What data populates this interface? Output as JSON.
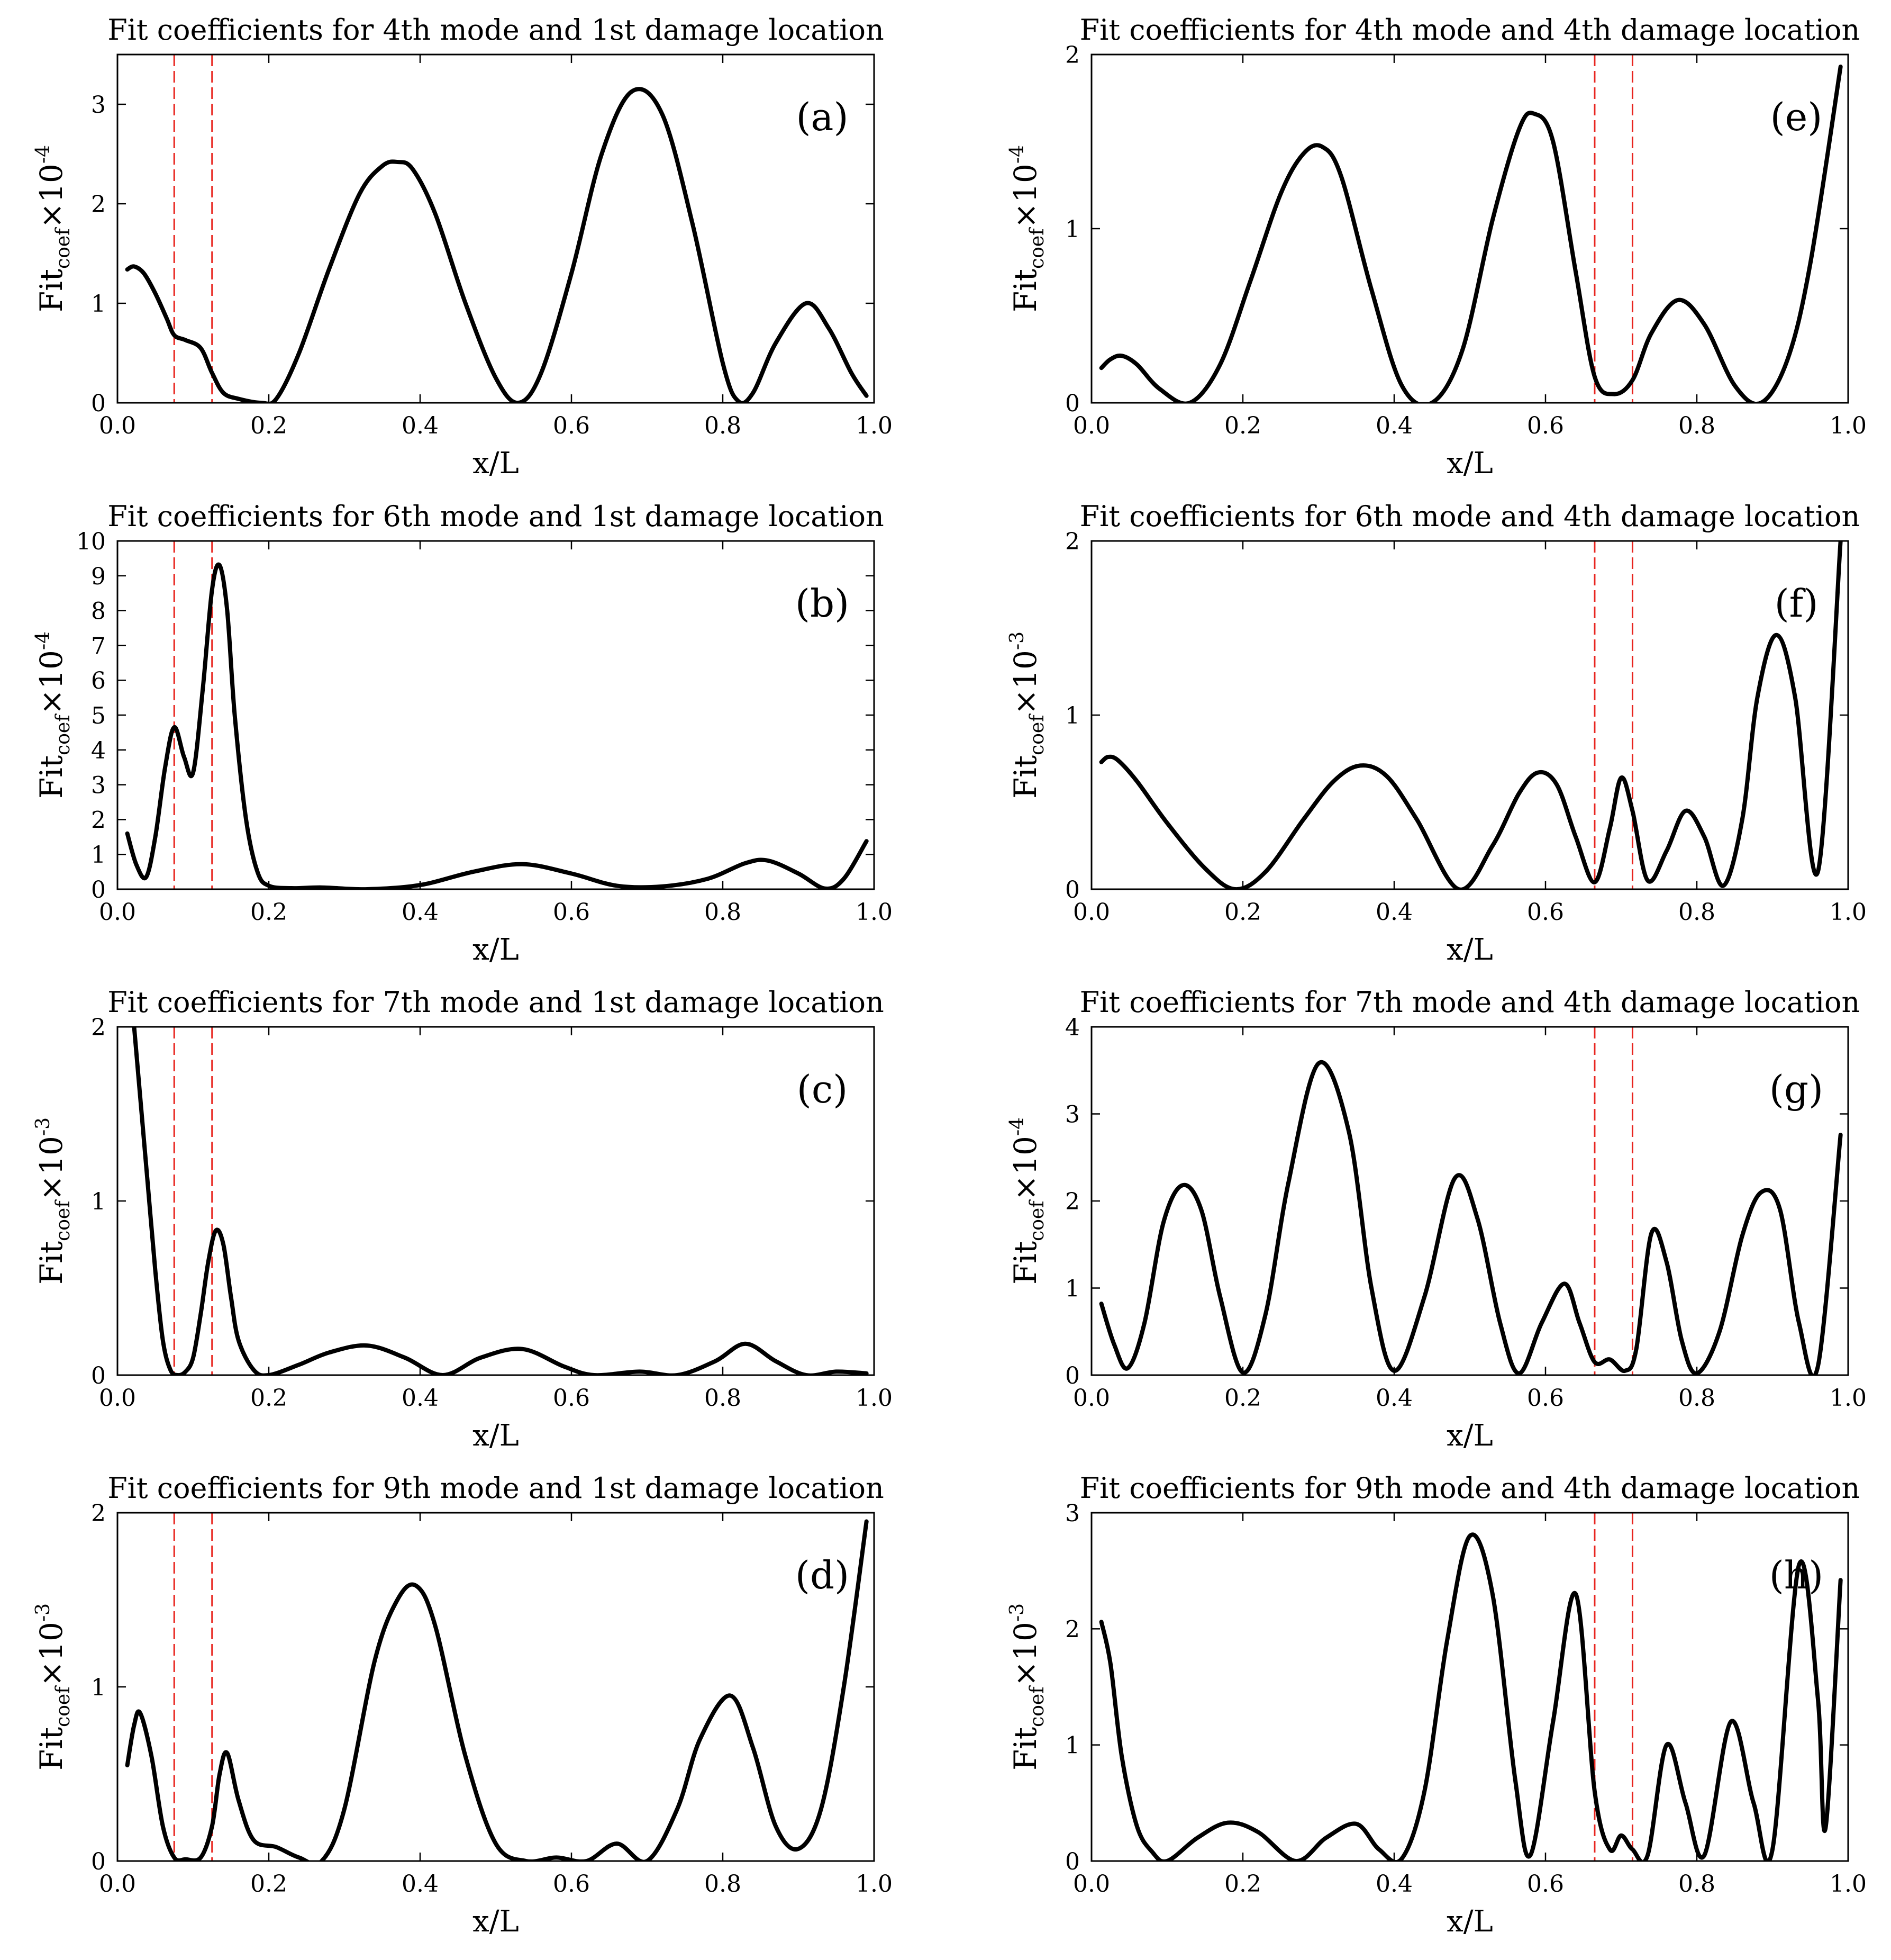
{
  "chart_data": [
    {
      "type": "line",
      "panel_label": "(a)",
      "title": "Fit coefficients for 4th mode and 1st damage location",
      "xlabel": "x/L",
      "ylabel": {
        "base": "Fit",
        "sub": "coef",
        "times": "×10",
        "exp": "-4"
      },
      "xlim": [
        0,
        1
      ],
      "ylim": [
        0,
        3.5
      ],
      "xticks": [
        "0.0",
        "0.2",
        "0.4",
        "0.6",
        "0.8",
        "1.0"
      ],
      "yticks": [
        0,
        1,
        2,
        3
      ],
      "damage_lines_x": [
        0.075,
        0.125
      ],
      "x": [
        0.013,
        0.022,
        0.035,
        0.05,
        0.065,
        0.075,
        0.09,
        0.11,
        0.125,
        0.14,
        0.16,
        0.19,
        0.21,
        0.24,
        0.28,
        0.32,
        0.35,
        0.37,
        0.39,
        0.42,
        0.46,
        0.5,
        0.53,
        0.56,
        0.6,
        0.64,
        0.68,
        0.72,
        0.76,
        0.8,
        0.82,
        0.84,
        0.87,
        0.91,
        0.94,
        0.97,
        0.99
      ],
      "y": [
        1.34,
        1.37,
        1.3,
        1.1,
        0.85,
        0.68,
        0.63,
        0.55,
        0.3,
        0.1,
        0.04,
        0.0,
        0.04,
        0.5,
        1.35,
        2.1,
        2.38,
        2.42,
        2.35,
        1.9,
        1.0,
        0.25,
        0.0,
        0.3,
        1.3,
        2.5,
        3.13,
        2.9,
        1.8,
        0.4,
        0.02,
        0.1,
        0.6,
        1.0,
        0.75,
        0.3,
        0.07
      ]
    },
    {
      "type": "line",
      "panel_label": "(b)",
      "title": "Fit coefficients for 6th mode and 1st damage location",
      "xlabel": "x/L",
      "ylabel": {
        "base": "Fit",
        "sub": "coef",
        "times": "×10",
        "exp": "-4"
      },
      "xlim": [
        0,
        1
      ],
      "ylim": [
        0,
        10
      ],
      "xticks": [
        "0.0",
        "0.2",
        "0.4",
        "0.6",
        "0.8",
        "1.0"
      ],
      "yticks": [
        0,
        1,
        2,
        3,
        4,
        5,
        6,
        7,
        8,
        9,
        10
      ],
      "damage_lines_x": [
        0.075,
        0.125
      ],
      "x": [
        0.013,
        0.025,
        0.038,
        0.05,
        0.063,
        0.075,
        0.088,
        0.1,
        0.113,
        0.125,
        0.135,
        0.145,
        0.155,
        0.17,
        0.185,
        0.2,
        0.23,
        0.27,
        0.33,
        0.4,
        0.47,
        0.535,
        0.6,
        0.66,
        0.72,
        0.78,
        0.83,
        0.86,
        0.9,
        0.935,
        0.96,
        0.99
      ],
      "y": [
        1.6,
        0.7,
        0.35,
        1.5,
        3.5,
        4.65,
        3.8,
        3.35,
        5.8,
        8.6,
        9.3,
        8.0,
        5.0,
        2.0,
        0.5,
        0.1,
        0.03,
        0.05,
        0.0,
        0.12,
        0.5,
        0.72,
        0.45,
        0.1,
        0.08,
        0.3,
        0.75,
        0.82,
        0.45,
        0.02,
        0.3,
        1.38
      ]
    },
    {
      "type": "line",
      "panel_label": "(c)",
      "title": "Fit coefficients for 7th mode and 1st damage location",
      "xlabel": "x/L",
      "ylabel": {
        "base": "Fit",
        "sub": "coef",
        "times": "×10",
        "exp": "-3"
      },
      "xlim": [
        0,
        1
      ],
      "ylim": [
        0,
        2
      ],
      "xticks": [
        "0.0",
        "0.2",
        "0.4",
        "0.6",
        "0.8",
        "1.0"
      ],
      "yticks": [
        0,
        1,
        2
      ],
      "damage_lines_x": [
        0.075,
        0.125
      ],
      "x": [
        0.022,
        0.03,
        0.04,
        0.05,
        0.06,
        0.07,
        0.08,
        0.09,
        0.1,
        0.11,
        0.12,
        0.13,
        0.14,
        0.15,
        0.16,
        0.18,
        0.2,
        0.24,
        0.28,
        0.33,
        0.38,
        0.43,
        0.48,
        0.535,
        0.59,
        0.63,
        0.69,
        0.74,
        0.79,
        0.83,
        0.87,
        0.91,
        0.95,
        0.99
      ],
      "y": [
        2.0,
        1.6,
        1.1,
        0.6,
        0.2,
        0.03,
        0.0,
        0.02,
        0.1,
        0.35,
        0.65,
        0.83,
        0.75,
        0.45,
        0.2,
        0.03,
        0.0,
        0.06,
        0.13,
        0.17,
        0.1,
        0.0,
        0.1,
        0.15,
        0.05,
        0.0,
        0.02,
        0.0,
        0.08,
        0.18,
        0.08,
        0.0,
        0.02,
        0.01
      ]
    },
    {
      "type": "line",
      "panel_label": "(d)",
      "title": "Fit coefficients for 9th mode and 1st damage location",
      "xlabel": "x/L",
      "ylabel": {
        "base": "Fit",
        "sub": "coef",
        "times": "×10",
        "exp": "-3"
      },
      "xlim": [
        0,
        1
      ],
      "ylim": [
        0,
        2
      ],
      "xticks": [
        "0.0",
        "0.2",
        "0.4",
        "0.6",
        "0.8",
        "1.0"
      ],
      "yticks": [
        0,
        1,
        2
      ],
      "damage_lines_x": [
        0.075,
        0.125
      ],
      "x": [
        0.013,
        0.022,
        0.03,
        0.045,
        0.06,
        0.075,
        0.09,
        0.11,
        0.125,
        0.135,
        0.145,
        0.16,
        0.18,
        0.21,
        0.24,
        0.27,
        0.3,
        0.34,
        0.37,
        0.395,
        0.42,
        0.46,
        0.5,
        0.54,
        0.58,
        0.62,
        0.66,
        0.7,
        0.74,
        0.77,
        0.81,
        0.84,
        0.87,
        0.9,
        0.93,
        0.96,
        0.99
      ],
      "y": [
        0.55,
        0.78,
        0.85,
        0.6,
        0.2,
        0.02,
        0.01,
        0.02,
        0.2,
        0.5,
        0.62,
        0.35,
        0.12,
        0.08,
        0.02,
        0.0,
        0.3,
        1.15,
        1.5,
        1.58,
        1.35,
        0.6,
        0.1,
        0.0,
        0.02,
        0.0,
        0.1,
        0.0,
        0.3,
        0.7,
        0.95,
        0.65,
        0.2,
        0.07,
        0.3,
        1.0,
        1.95
      ]
    },
    {
      "type": "line",
      "panel_label": "(e)",
      "title": "Fit coefficients for 4th mode and 4th damage location",
      "xlabel": "x/L",
      "ylabel": {
        "base": "Fit",
        "sub": "coef",
        "times": "×10",
        "exp": "-4"
      },
      "xlim": [
        0,
        1
      ],
      "ylim": [
        0,
        2
      ],
      "xticks": [
        "0.0",
        "0.2",
        "0.4",
        "0.6",
        "0.8",
        "1.0"
      ],
      "yticks": [
        0,
        1,
        2
      ],
      "damage_lines_x": [
        0.665,
        0.715
      ],
      "x": [
        0.013,
        0.025,
        0.04,
        0.06,
        0.09,
        0.13,
        0.17,
        0.21,
        0.25,
        0.28,
        0.305,
        0.33,
        0.37,
        0.41,
        0.45,
        0.49,
        0.53,
        0.565,
        0.585,
        0.61,
        0.64,
        0.665,
        0.69,
        0.715,
        0.74,
        0.775,
        0.81,
        0.85,
        0.885,
        0.92,
        0.95,
        0.99
      ],
      "y": [
        0.2,
        0.25,
        0.27,
        0.22,
        0.08,
        0.0,
        0.22,
        0.7,
        1.2,
        1.43,
        1.47,
        1.3,
        0.65,
        0.1,
        0.0,
        0.3,
        1.05,
        1.57,
        1.66,
        1.5,
        0.75,
        0.15,
        0.05,
        0.13,
        0.4,
        0.59,
        0.45,
        0.1,
        0.0,
        0.25,
        0.8,
        1.93
      ]
    },
    {
      "type": "line",
      "panel_label": "(f)",
      "title": "Fit coefficients for 6th mode and 4th damage location",
      "xlabel": "x/L",
      "ylabel": {
        "base": "Fit",
        "sub": "coef",
        "times": "×10",
        "exp": "-3"
      },
      "xlim": [
        0,
        1
      ],
      "ylim": [
        0,
        2
      ],
      "xticks": [
        "0.0",
        "0.2",
        "0.4",
        "0.6",
        "0.8",
        "1.0"
      ],
      "yticks": [
        0,
        1,
        2
      ],
      "damage_lines_x": [
        0.665,
        0.715
      ],
      "x": [
        0.013,
        0.022,
        0.035,
        0.06,
        0.1,
        0.15,
        0.19,
        0.23,
        0.28,
        0.32,
        0.355,
        0.39,
        0.43,
        0.485,
        0.53,
        0.565,
        0.59,
        0.615,
        0.64,
        0.665,
        0.685,
        0.7,
        0.715,
        0.735,
        0.76,
        0.785,
        0.81,
        0.835,
        0.86,
        0.88,
        0.905,
        0.93,
        0.96,
        0.99
      ],
      "y": [
        0.73,
        0.76,
        0.74,
        0.62,
        0.38,
        0.12,
        0.0,
        0.1,
        0.4,
        0.62,
        0.71,
        0.65,
        0.4,
        0.0,
        0.25,
        0.55,
        0.67,
        0.6,
        0.3,
        0.04,
        0.35,
        0.64,
        0.45,
        0.05,
        0.22,
        0.45,
        0.3,
        0.02,
        0.4,
        1.1,
        1.46,
        1.1,
        0.1,
        2.0
      ]
    },
    {
      "type": "line",
      "panel_label": "(g)",
      "title": "Fit coefficients for 7th mode and 4th damage location",
      "xlabel": "x/L",
      "ylabel": {
        "base": "Fit",
        "sub": "coef",
        "times": "×10",
        "exp": "-4"
      },
      "xlim": [
        0,
        1
      ],
      "ylim": [
        0,
        4
      ],
      "xticks": [
        "0.0",
        "0.2",
        "0.4",
        "0.6",
        "0.8",
        "1.0"
      ],
      "yticks": [
        0,
        1,
        2,
        3,
        4
      ],
      "damage_lines_x": [
        0.665,
        0.715
      ],
      "x": [
        0.013,
        0.03,
        0.048,
        0.07,
        0.095,
        0.12,
        0.145,
        0.17,
        0.2,
        0.23,
        0.26,
        0.3,
        0.34,
        0.37,
        0.4,
        0.44,
        0.48,
        0.51,
        0.54,
        0.565,
        0.595,
        0.625,
        0.645,
        0.665,
        0.685,
        0.705,
        0.72,
        0.74,
        0.76,
        0.78,
        0.8,
        0.83,
        0.86,
        0.885,
        0.91,
        0.935,
        0.96,
        0.99
      ],
      "y": [
        0.82,
        0.35,
        0.08,
        0.6,
        1.75,
        2.18,
        1.9,
        0.9,
        0.03,
        0.7,
        2.2,
        3.58,
        2.8,
        1.0,
        0.05,
        0.9,
        2.26,
        1.8,
        0.6,
        0.02,
        0.6,
        1.05,
        0.6,
        0.15,
        0.18,
        0.05,
        0.3,
        1.63,
        1.3,
        0.4,
        0.02,
        0.5,
        1.6,
        2.1,
        1.9,
        0.6,
        0.1,
        2.76
      ]
    },
    {
      "type": "line",
      "panel_label": "(h)",
      "title": "Fit coefficients for 9th mode and 4th damage location",
      "xlabel": "x/L",
      "ylabel": {
        "base": "Fit",
        "sub": "coef",
        "times": "×10",
        "exp": "-3"
      },
      "xlim": [
        0,
        1
      ],
      "ylim": [
        0,
        3
      ],
      "xticks": [
        "0.0",
        "0.2",
        "0.4",
        "0.6",
        "0.8",
        "1.0"
      ],
      "yticks": [
        0,
        1,
        2,
        3
      ],
      "damage_lines_x": [
        0.665,
        0.715
      ],
      "x": [
        0.013,
        0.025,
        0.04,
        0.06,
        0.08,
        0.1,
        0.14,
        0.18,
        0.22,
        0.27,
        0.31,
        0.35,
        0.38,
        0.41,
        0.44,
        0.47,
        0.5,
        0.53,
        0.56,
        0.58,
        0.61,
        0.64,
        0.665,
        0.685,
        0.7,
        0.715,
        0.735,
        0.76,
        0.785,
        0.81,
        0.845,
        0.875,
        0.9,
        0.935,
        0.96,
        0.97,
        0.99
      ],
      "y": [
        2.06,
        1.7,
        0.9,
        0.3,
        0.08,
        0.0,
        0.2,
        0.33,
        0.25,
        0.0,
        0.2,
        0.32,
        0.1,
        0.02,
        0.6,
        1.9,
        2.8,
        2.3,
        0.7,
        0.05,
        1.2,
        2.3,
        0.6,
        0.1,
        0.22,
        0.1,
        0.05,
        1.0,
        0.5,
        0.05,
        1.2,
        0.5,
        0.1,
        2.55,
        1.4,
        0.28,
        2.42
      ]
    }
  ]
}
